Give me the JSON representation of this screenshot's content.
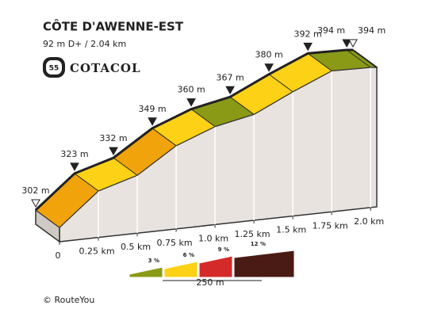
{
  "chart_data": {
    "type": "profile",
    "title": "CÔTE D'AWENNE-EST",
    "subtitle": "92 m D+ / 2.04 km",
    "x": [
      0,
      0.25,
      0.5,
      0.75,
      1.0,
      1.25,
      1.5,
      1.75,
      2.0,
      2.04
    ],
    "values": [
      302,
      323,
      332,
      349,
      360,
      367,
      380,
      392,
      394,
      394
    ],
    "value_labels": [
      "302 m",
      "323 m",
      "332 m",
      "349 m",
      "360 m",
      "367 m",
      "380 m",
      "392 m",
      "394 m",
      "394 m"
    ],
    "segment_colors": [
      "#f0a30a",
      "#fcd116",
      "#f0a30a",
      "#fcd116",
      "#8a9a16",
      "#fcd116",
      "#fcd116",
      "#8a9a16",
      "#8a9a16"
    ],
    "xlim": [
      0,
      2.04
    ],
    "ylim": [
      302,
      394
    ],
    "xticks": [
      0,
      {
        "value": 0.25,
        "label": "0.25 km"
      },
      {
        "value": 0.5,
        "label": "0.5 km"
      },
      {
        "value": 0.75,
        "label": "0.75 km"
      },
      {
        "value": 1.0,
        "label": "1.0 km"
      },
      {
        "value": 1.25,
        "label": "1.25 km"
      },
      {
        "value": 1.5,
        "label": "1.5 km"
      },
      {
        "value": 1.75,
        "label": "1.75 km"
      },
      {
        "value": 2.0,
        "label": "2.0 km"
      }
    ],
    "legend": {
      "items": [
        {
          "label": "3 %",
          "color": "#8a9a16"
        },
        {
          "label": "6 %",
          "color": "#fcd116"
        },
        {
          "label": "9 %",
          "color": "#d42a2a"
        },
        {
          "label": "12 %",
          "color": "#4a1a14"
        }
      ],
      "scale_label": "250 m"
    }
  },
  "badge": {
    "number": "55",
    "label": "COTACOL"
  },
  "footer": "© RouteYou"
}
